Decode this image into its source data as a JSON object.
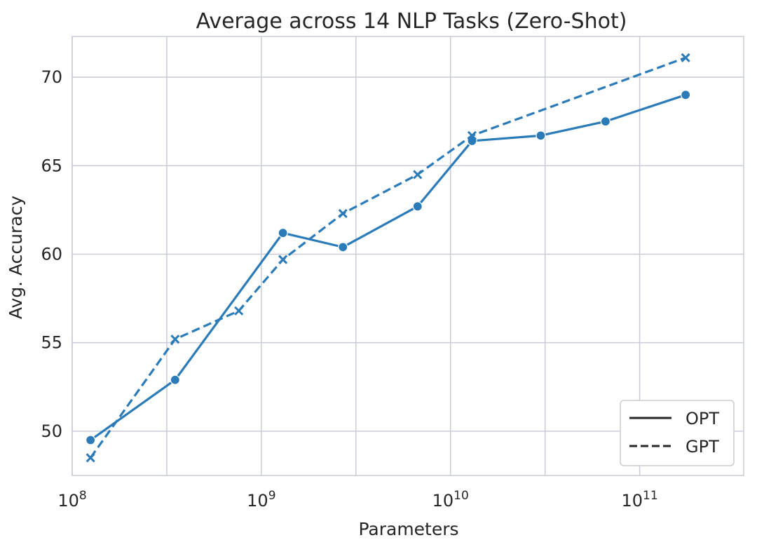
{
  "chart_data": {
    "type": "line",
    "title": "Average across 14 NLP Tasks (Zero-Shot)",
    "xlabel": "Parameters",
    "ylabel": "Avg. Accuracy",
    "xscale": "log",
    "xlim_log10": [
      8.0,
      11.55
    ],
    "ylim": [
      47.5,
      72.3
    ],
    "grid": true,
    "legend_position": "bottom-right",
    "x_ticks": [
      {
        "base": "10",
        "exp": "8",
        "log10": 8
      },
      {
        "base": "10",
        "exp": "9",
        "log10": 9
      },
      {
        "base": "10",
        "exp": "10",
        "log10": 10
      },
      {
        "base": "10",
        "exp": "11",
        "log10": 11
      }
    ],
    "y_ticks": [
      50,
      55,
      60,
      65,
      70
    ],
    "y_tick_labels": [
      "50",
      "55",
      "60",
      "65",
      "70"
    ],
    "x_minor_gridlines_log10": [
      8.5,
      9.5,
      10.5
    ],
    "color": "#2b7bb9",
    "series": [
      {
        "name": "OPT",
        "style": "solid",
        "marker": "circle",
        "x": [
          125000000,
          350000000,
          1300000000,
          2700000000,
          6700000000,
          13000000000,
          30000000000,
          66000000000,
          175000000000
        ],
        "y": [
          49.5,
          52.9,
          61.2,
          60.4,
          62.7,
          66.4,
          66.7,
          67.5,
          69.0
        ]
      },
      {
        "name": "GPT",
        "style": "dashed",
        "marker": "x",
        "x": [
          125000000,
          350000000,
          760000000,
          1300000000,
          2700000000,
          6700000000,
          13000000000,
          175000000000
        ],
        "y": [
          48.5,
          55.2,
          56.8,
          59.7,
          62.3,
          64.5,
          66.7,
          71.1
        ]
      }
    ]
  }
}
